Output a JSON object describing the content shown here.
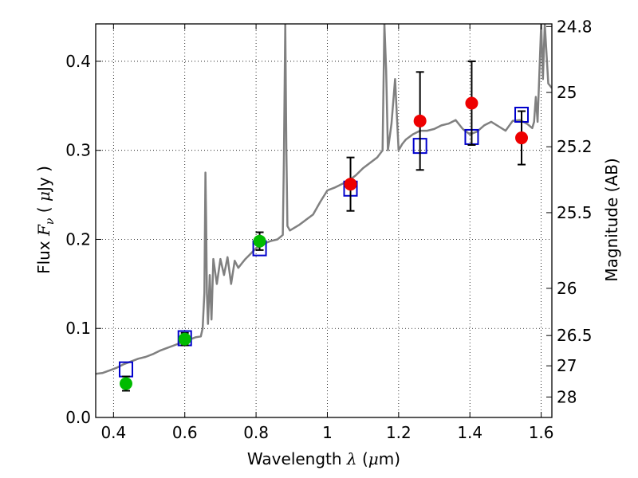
{
  "chart_data": {
    "type": "scatter",
    "xlabel": "Wavelength  λ (μm)",
    "ylabel": "Flux  F_ν  ( μJy )",
    "y2label": "Magnitude (AB)",
    "xlim": [
      0.35,
      1.63
    ],
    "ylim": [
      0.0,
      0.442
    ],
    "grid": true,
    "x_ticks": [
      0.4,
      0.6,
      0.8,
      1.0,
      1.2,
      1.4,
      1.6
    ],
    "x_tick_labels": [
      "0.4",
      "0.6",
      "0.8",
      "1",
      "1.2",
      "1.4",
      "1.6"
    ],
    "y_ticks": [
      0.0,
      0.1,
      0.2,
      0.3,
      0.4
    ],
    "y_tick_labels": [
      "0.0",
      "0.1",
      "0.2",
      "0.3",
      "0.4"
    ],
    "y2_ticks": [
      {
        "label": "24.8",
        "flux": 0.439
      },
      {
        "label": "25",
        "flux": 0.365
      },
      {
        "label": "25.2",
        "flux": 0.304
      },
      {
        "label": "25.5",
        "flux": 0.23
      },
      {
        "label": "26",
        "flux": 0.145
      },
      {
        "label": "26.5",
        "flux": 0.092
      },
      {
        "label": "27",
        "flux": 0.058
      },
      {
        "label": "28",
        "flux": 0.023
      }
    ],
    "series": [
      {
        "kind": "line",
        "color": "#808080",
        "x": [
          0.35,
          0.37,
          0.39,
          0.41,
          0.43,
          0.45,
          0.47,
          0.49,
          0.51,
          0.53,
          0.55,
          0.57,
          0.59,
          0.61,
          0.63,
          0.645,
          0.65,
          0.655,
          0.658,
          0.66,
          0.662,
          0.665,
          0.67,
          0.675,
          0.68,
          0.69,
          0.7,
          0.71,
          0.72,
          0.73,
          0.74,
          0.75,
          0.76,
          0.77,
          0.78,
          0.79,
          0.8,
          0.81,
          0.82,
          0.84,
          0.86,
          0.875,
          0.878,
          0.882,
          0.885,
          0.888,
          0.895,
          0.92,
          0.94,
          0.96,
          0.98,
          1.0,
          1.02,
          1.04,
          1.06,
          1.08,
          1.1,
          1.12,
          1.14,
          1.155,
          1.16,
          1.165,
          1.17,
          1.18,
          1.19,
          1.2,
          1.21,
          1.22,
          1.24,
          1.26,
          1.28,
          1.3,
          1.32,
          1.34,
          1.36,
          1.38,
          1.4,
          1.42,
          1.44,
          1.46,
          1.48,
          1.5,
          1.52,
          1.54,
          1.56,
          1.575,
          1.58,
          1.585,
          1.59,
          1.6,
          1.605,
          1.61,
          1.62,
          1.63
        ],
        "y": [
          0.049,
          0.05,
          0.053,
          0.056,
          0.06,
          0.063,
          0.066,
          0.068,
          0.071,
          0.075,
          0.078,
          0.081,
          0.084,
          0.087,
          0.09,
          0.091,
          0.1,
          0.14,
          0.275,
          0.22,
          0.14,
          0.105,
          0.16,
          0.11,
          0.178,
          0.15,
          0.178,
          0.16,
          0.18,
          0.15,
          0.176,
          0.168,
          0.173,
          0.178,
          0.182,
          0.186,
          0.19,
          0.192,
          0.195,
          0.198,
          0.2,
          0.205,
          0.29,
          0.442,
          0.3,
          0.215,
          0.21,
          0.216,
          0.222,
          0.228,
          0.242,
          0.255,
          0.258,
          0.262,
          0.266,
          0.272,
          0.28,
          0.286,
          0.292,
          0.3,
          0.442,
          0.39,
          0.3,
          0.33,
          0.38,
          0.3,
          0.307,
          0.312,
          0.318,
          0.322,
          0.322,
          0.324,
          0.328,
          0.33,
          0.334,
          0.324,
          0.318,
          0.321,
          0.328,
          0.332,
          0.327,
          0.322,
          0.333,
          0.334,
          0.33,
          0.325,
          0.332,
          0.36,
          0.332,
          0.442,
          0.38,
          0.442,
          0.375,
          0.37
        ]
      },
      {
        "kind": "model_photometry",
        "marker": "square",
        "color": "#0000cc",
        "x": [
          0.435,
          0.6,
          0.81,
          1.065,
          1.26,
          1.405,
          1.545
        ],
        "y": [
          0.054,
          0.089,
          0.19,
          0.257,
          0.305,
          0.315,
          0.34
        ]
      },
      {
        "kind": "observed_optical",
        "marker": "circle",
        "color": "#00bb00",
        "x": [
          0.435,
          0.6,
          0.81
        ],
        "y": [
          0.038,
          0.088,
          0.198
        ],
        "yerr": [
          0.008,
          0.007,
          0.01
        ]
      },
      {
        "kind": "observed_nir",
        "marker": "circle",
        "color": "#ee0000",
        "x": [
          1.065,
          1.26,
          1.405,
          1.545
        ],
        "y": [
          0.262,
          0.333,
          0.353,
          0.314
        ],
        "yerr": [
          0.03,
          0.055,
          0.047,
          0.03
        ]
      }
    ]
  }
}
